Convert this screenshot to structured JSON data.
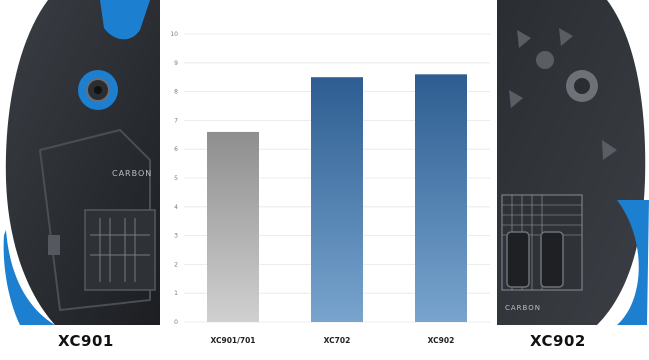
{
  "shoes": {
    "left_label": "XC901",
    "right_label": "XC902"
  },
  "sole_text": {
    "brand": "CARBON"
  },
  "colors": {
    "bar_gray_top": "#8e8e8e",
    "bar_gray_bottom": "#d0d0d0",
    "bar_blue_top": "#2d5d91",
    "bar_blue_bottom": "#78a4ce",
    "accent_blue": "#1d7fd0",
    "sole_dark": "#24272b"
  },
  "chart_data": {
    "type": "bar",
    "categories": [
      "XC901/701",
      "XC702",
      "XC902"
    ],
    "values": [
      6.6,
      8.5,
      8.6
    ],
    "ylim": [
      0,
      10
    ],
    "yticks": [
      0,
      1,
      2,
      3,
      4,
      5,
      6,
      7,
      8,
      9,
      10
    ],
    "grid": true,
    "legend": "none",
    "title": "",
    "xlabel": "",
    "ylabel": ""
  }
}
